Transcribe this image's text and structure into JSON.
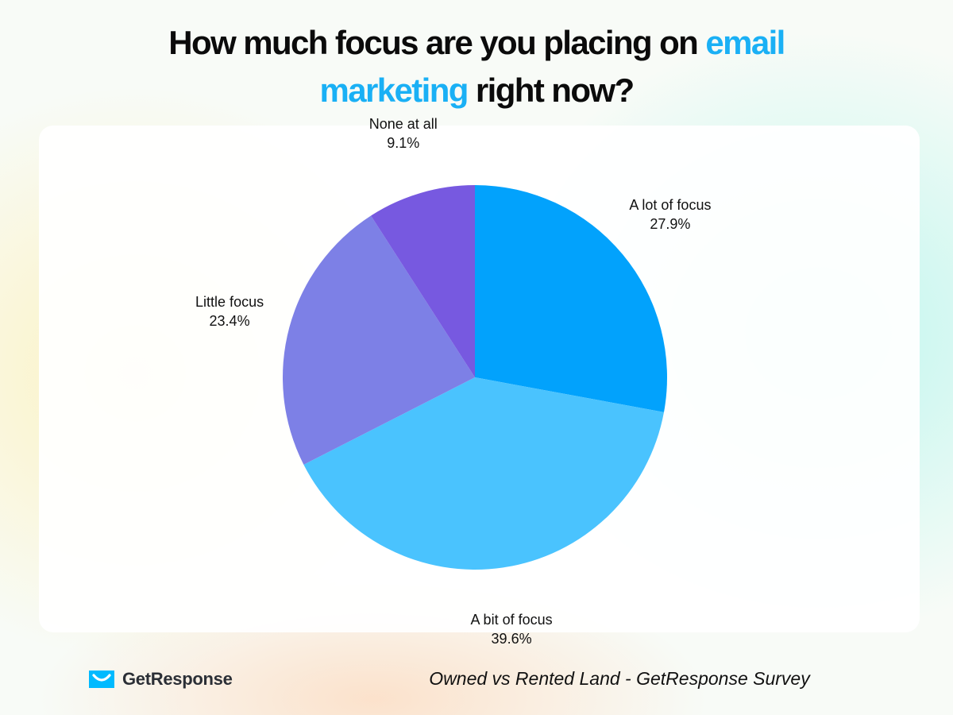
{
  "title": {
    "part1": "How much focus are you placing on ",
    "highlight1": "email",
    "highlight2": "marketing",
    "part2": " right now?"
  },
  "colors": {
    "accent": "#1ab0f5",
    "brand": "#00baff"
  },
  "chart_data": {
    "type": "pie",
    "title": "How much focus are you placing on email marketing right now?",
    "slices": [
      {
        "label": "A lot of focus",
        "value": 27.9,
        "value_label": "27.9%",
        "color": "#02a2fc"
      },
      {
        "label": "A bit of focus",
        "value": 39.6,
        "value_label": "39.6%",
        "color": "#4ac3fe"
      },
      {
        "label": "Little focus",
        "value": 23.4,
        "value_label": "23.4%",
        "color": "#7d80e6"
      },
      {
        "label": "None at all",
        "value": 9.1,
        "value_label": "9.1%",
        "color": "#7759e0"
      }
    ],
    "start": "12 o'clock",
    "direction": "clockwise",
    "legend": "none"
  },
  "footer": {
    "logo_text": "GetResponse",
    "logo_icon": "envelope-smile-icon",
    "source": "Owned vs Rented Land - GetResponse Survey"
  }
}
